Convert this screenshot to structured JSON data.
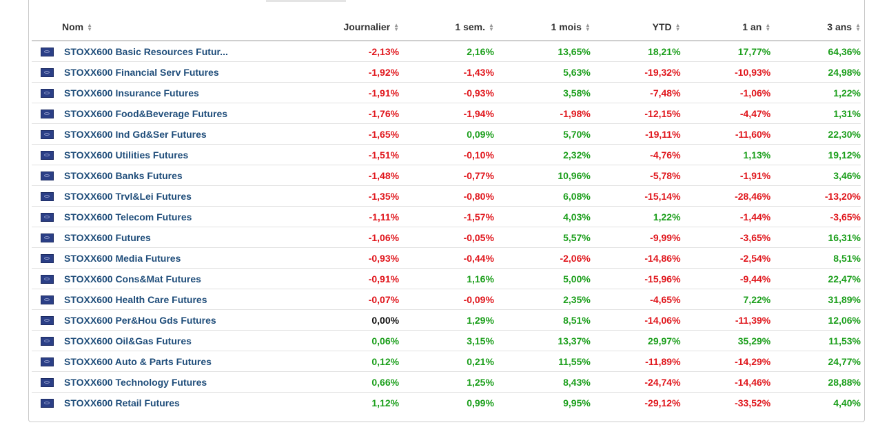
{
  "colors": {
    "positive": "#1a9e1a",
    "negative": "#e0151b",
    "neutral": "#111111",
    "link": "#1f4d7a"
  },
  "table": {
    "columns": [
      "Nom",
      "Journalier",
      "1 sem.",
      "1 mois",
      "YTD",
      "1 an",
      "3 ans"
    ],
    "rows": [
      {
        "name": "STOXX600 Basic Resources Futur...",
        "values": [
          "-2,13%",
          "2,16%",
          "13,65%",
          "18,21%",
          "17,77%",
          "64,36%"
        ]
      },
      {
        "name": "STOXX600 Financial Serv Futures",
        "values": [
          "-1,92%",
          "-1,43%",
          "5,63%",
          "-19,32%",
          "-10,93%",
          "24,98%"
        ]
      },
      {
        "name": "STOXX600 Insurance Futures",
        "values": [
          "-1,91%",
          "-0,93%",
          "3,58%",
          "-7,48%",
          "-1,06%",
          "1,22%"
        ]
      },
      {
        "name": "STOXX600 Food&Beverage Futures",
        "values": [
          "-1,76%",
          "-1,94%",
          "-1,98%",
          "-12,15%",
          "-4,47%",
          "1,31%"
        ]
      },
      {
        "name": "STOXX600 Ind Gd&Ser Futures",
        "values": [
          "-1,65%",
          "0,09%",
          "5,70%",
          "-19,11%",
          "-11,60%",
          "22,30%"
        ]
      },
      {
        "name": "STOXX600 Utilities Futures",
        "values": [
          "-1,51%",
          "-0,10%",
          "2,32%",
          "-4,76%",
          "1,13%",
          "19,12%"
        ]
      },
      {
        "name": "STOXX600 Banks Futures",
        "values": [
          "-1,48%",
          "-0,77%",
          "10,96%",
          "-5,78%",
          "-1,91%",
          "3,46%"
        ]
      },
      {
        "name": "STOXX600 Trvl&Lei Futures",
        "values": [
          "-1,35%",
          "-0,80%",
          "6,08%",
          "-15,14%",
          "-28,46%",
          "-13,20%"
        ]
      },
      {
        "name": "STOXX600 Telecom Futures",
        "values": [
          "-1,11%",
          "-1,57%",
          "4,03%",
          "1,22%",
          "-1,44%",
          "-3,65%"
        ]
      },
      {
        "name": "STOXX600 Futures",
        "values": [
          "-1,06%",
          "-0,05%",
          "5,57%",
          "-9,99%",
          "-3,65%",
          "16,31%"
        ]
      },
      {
        "name": "STOXX600 Media Futures",
        "values": [
          "-0,93%",
          "-0,44%",
          "-2,06%",
          "-14,86%",
          "-2,54%",
          "8,51%"
        ]
      },
      {
        "name": "STOXX600 Cons&Mat Futures",
        "values": [
          "-0,91%",
          "1,16%",
          "5,00%",
          "-15,96%",
          "-9,44%",
          "22,47%"
        ]
      },
      {
        "name": "STOXX600 Health Care Futures",
        "values": [
          "-0,07%",
          "-0,09%",
          "2,35%",
          "-4,65%",
          "7,22%",
          "31,89%"
        ]
      },
      {
        "name": "STOXX600 Per&Hou Gds Futures",
        "values": [
          "0,00%",
          "1,29%",
          "8,51%",
          "-14,06%",
          "-11,39%",
          "12,06%"
        ]
      },
      {
        "name": "STOXX600 Oil&Gas Futures",
        "values": [
          "0,06%",
          "3,15%",
          "13,37%",
          "29,97%",
          "35,29%",
          "11,53%"
        ]
      },
      {
        "name": "STOXX600 Auto & Parts Futures",
        "values": [
          "0,12%",
          "0,21%",
          "11,55%",
          "-11,89%",
          "-14,29%",
          "24,77%"
        ]
      },
      {
        "name": "STOXX600 Technology Futures",
        "values": [
          "0,66%",
          "1,25%",
          "8,43%",
          "-24,74%",
          "-14,46%",
          "28,88%"
        ]
      },
      {
        "name": "STOXX600 Retail Futures",
        "values": [
          "1,12%",
          "0,99%",
          "9,95%",
          "-29,12%",
          "-33,52%",
          "4,40%"
        ]
      }
    ]
  }
}
